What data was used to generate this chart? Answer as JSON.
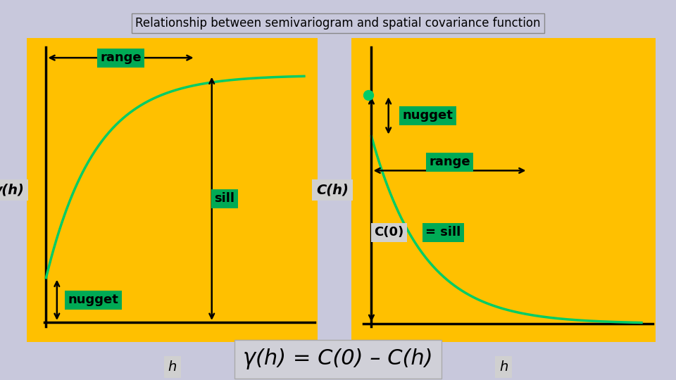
{
  "title": "Relationship between semivariogram and spatial covariance function",
  "title_fontsize": 12,
  "bg_color": "#c8c8dc",
  "panel_bg": "#FFC000",
  "curve_color": "#00CC66",
  "arrow_color": "#000000",
  "label_bg": "#00AA55",
  "formula": "γ(h) = C(0) – C(h)",
  "formula_fontsize": 22,
  "left_ylabel": "γ(h)",
  "left_xlabel": "h",
  "right_ylabel": "C(h)",
  "right_xlabel": "h",
  "nugget_val": 0.18,
  "sill_val": 1.0,
  "range_val": 0.55
}
